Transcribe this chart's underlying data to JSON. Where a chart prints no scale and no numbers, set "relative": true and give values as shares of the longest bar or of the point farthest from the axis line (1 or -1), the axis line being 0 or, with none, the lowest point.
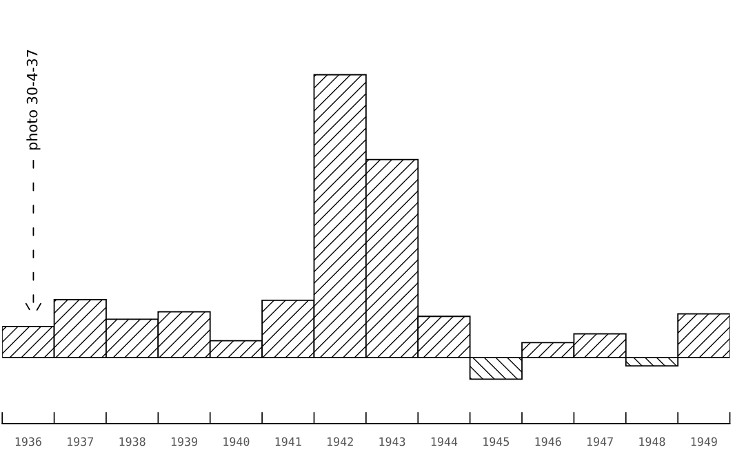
{
  "chart_data": {
    "type": "bar",
    "relative": true,
    "categories": [
      "1936",
      "1937",
      "1938",
      "1939",
      "1940",
      "1941",
      "1942",
      "1943",
      "1944",
      "1945",
      "1946",
      "1947",
      "1948",
      "1949"
    ],
    "values": [
      0.11,
      0.205,
      0.136,
      0.162,
      0.06,
      0.203,
      1,
      0.7,
      0.146,
      -0.076,
      0.053,
      0.084,
      -0.029,
      0.155
    ],
    "color": "#000000",
    "annotations": [
      "photo 30-4-37"
    ],
    "grid": false
  }
}
